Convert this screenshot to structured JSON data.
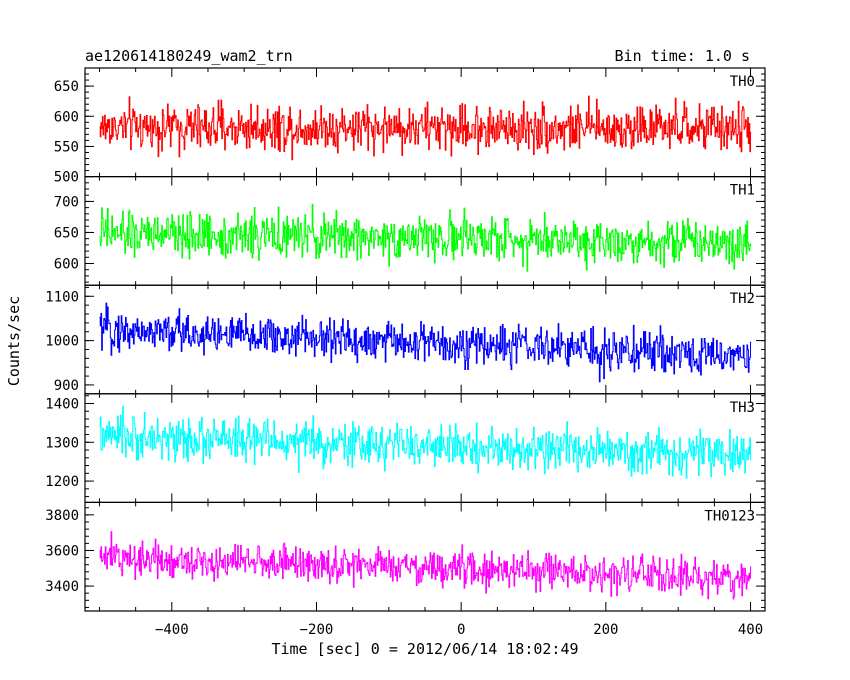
{
  "chart_data": {
    "type": "line",
    "title": "ae120614180249_wam2_trn",
    "bin_time_label": "Bin time: 1.0 s",
    "xlabel": "Time [sec] 0 = 2012/06/14 18:02:49",
    "ylabel": "Counts/sec",
    "xlim": [
      -520,
      420
    ],
    "x_ticks": [
      -400,
      -200,
      0,
      200,
      400
    ],
    "x_tick_labels": [
      "−400",
      "−200",
      "0",
      "200",
      "400"
    ],
    "x_range_data": [
      -500,
      400
    ],
    "bin_time_s": 1.0,
    "series": [
      {
        "name": "TH0",
        "color": "#ff0000",
        "ylim": [
          500,
          680
        ],
        "y_ticks": [
          500,
          550,
          600,
          650
        ],
        "mean_start": 582,
        "mean_end": 580,
        "spread": 27,
        "max_y": 680,
        "min_y": 500
      },
      {
        "name": "TH1",
        "color": "#00ff00",
        "ylim": [
          565,
          740
        ],
        "y_ticks": [
          600,
          650,
          700
        ],
        "mean_start": 648,
        "mean_end": 635,
        "spread": 25,
        "max_y": 740,
        "min_y": 565
      },
      {
        "name": "TH2",
        "color": "#0000ff",
        "ylim": [
          880,
          1125
        ],
        "y_ticks": [
          900,
          1000,
          1100
        ],
        "mean_start": 1025,
        "mean_end": 965,
        "spread": 32,
        "max_y": 1125,
        "min_y": 880
      },
      {
        "name": "TH3",
        "color": "#00ffff",
        "ylim": [
          1145,
          1425
        ],
        "y_ticks": [
          1200,
          1300,
          1400
        ],
        "mean_start": 1315,
        "mean_end": 1265,
        "spread": 38,
        "max_y": 1425,
        "min_y": 1145
      },
      {
        "name": "TH0123",
        "color": "#ff00ff",
        "ylim": [
          3260,
          3870
        ],
        "y_ticks": [
          3400,
          3600,
          3800
        ],
        "mean_start": 3565,
        "mean_end": 3440,
        "spread": 70,
        "max_y": 3870,
        "min_y": 3260
      }
    ]
  }
}
